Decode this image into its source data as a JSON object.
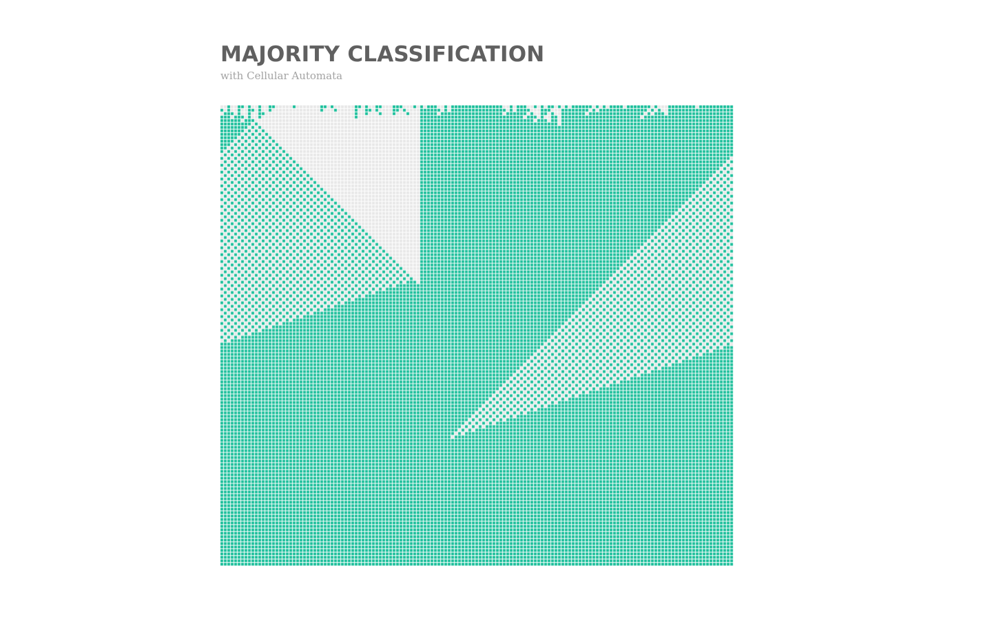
{
  "header": {
    "title": "MAJORITY CLASSIFICATION",
    "subtitle": "with Cellular Automata"
  },
  "automaton": {
    "cols": 149,
    "rows": 134,
    "colors": {
      "on": "#1dbf9b",
      "off": "#e8e8e8",
      "gap": "#ffffff"
    }
  }
}
